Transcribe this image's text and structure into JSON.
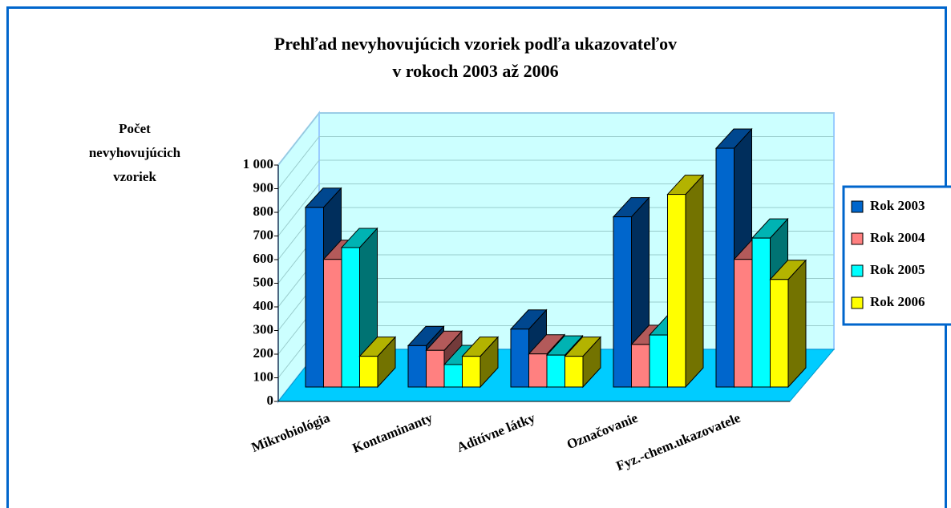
{
  "chart_data": {
    "type": "bar3d",
    "title": [
      "Prehľad nevyhovujúcich vzoriek podľa ukazovateľov",
      "v rokoch 2003 až 2006"
    ],
    "y_label": [
      "Počet",
      "nevyhovujúcich",
      "vzoriek"
    ],
    "categories": [
      "Mikrobiológia",
      "Kontaminanty",
      "Aditívne látky",
      "Označovanie",
      "Fyz.-chem.ukazovatele"
    ],
    "series": [
      {
        "name": "Rok 2003",
        "color": "#0066cc",
        "values": [
          760,
          175,
          245,
          720,
          1010
        ]
      },
      {
        "name": "Rok 2004",
        "color": "#ff8080",
        "values": [
          540,
          155,
          140,
          180,
          540
        ]
      },
      {
        "name": "Rok 2005",
        "color": "#00ffff",
        "values": [
          590,
          95,
          135,
          220,
          630
        ]
      },
      {
        "name": "Rok 2006",
        "color": "#ffff00",
        "values": [
          130,
          130,
          130,
          815,
          455
        ]
      }
    ],
    "ylim": [
      0,
      1000
    ],
    "yticks": [
      0,
      100,
      200,
      300,
      400,
      500,
      600,
      700,
      800,
      900,
      {
        "value": 1000,
        "label": "1 000"
      }
    ],
    "grid": true
  }
}
